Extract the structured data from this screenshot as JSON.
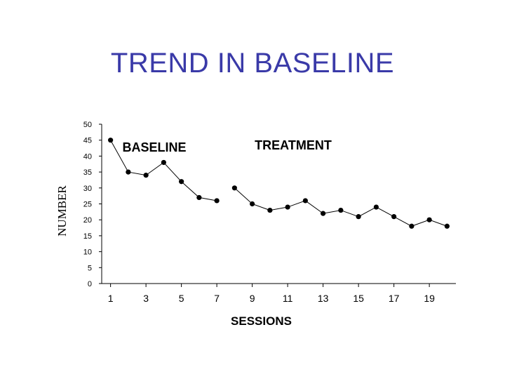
{
  "slide": {
    "title": "TREND IN BASELINE"
  },
  "chart_data": {
    "type": "line",
    "title": "",
    "xlabel": "SESSIONS",
    "ylabel": "NUMBER",
    "ylim": [
      0,
      50
    ],
    "y_ticks": [
      0,
      5,
      10,
      15,
      20,
      25,
      30,
      35,
      40,
      45,
      50
    ],
    "x_range": [
      0.5,
      20.5
    ],
    "x_ticks": [
      1,
      3,
      5,
      7,
      9,
      11,
      13,
      15,
      17,
      19
    ],
    "grid": false,
    "phases": [
      {
        "label": "BASELINE",
        "x": [
          1,
          2,
          3,
          4,
          5,
          6,
          7
        ],
        "y": [
          45,
          35,
          34,
          38,
          32,
          27,
          26
        ]
      },
      {
        "label": "TREATMENT",
        "x": [
          8,
          9,
          10,
          11,
          12,
          13,
          14,
          15,
          16,
          17,
          18,
          19,
          20
        ],
        "y": [
          30,
          25,
          23,
          24,
          26,
          22,
          23,
          21,
          24,
          21,
          18,
          20,
          18
        ]
      }
    ],
    "phase_change_after_x": 7.5,
    "colors": {
      "line": "#000000",
      "marker": "#000000",
      "title": "#3a3aa8"
    }
  }
}
